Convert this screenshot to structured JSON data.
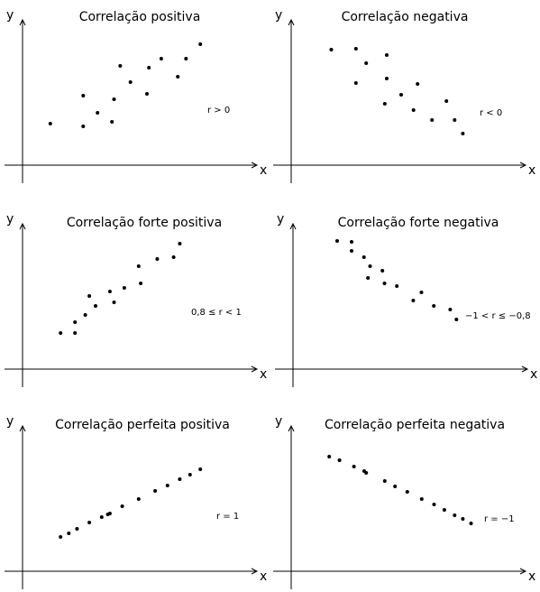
{
  "chart_data": [
    {
      "type": "scatter",
      "title": "Correlação positiva",
      "xlabel": "x",
      "ylabel": "y",
      "annotation": "r > 0",
      "grid": false,
      "points": [
        [
          1.0,
          3.8
        ],
        [
          2.6,
          3.5
        ],
        [
          2.6,
          6.9
        ],
        [
          3.3,
          5.0
        ],
        [
          4.0,
          4.0
        ],
        [
          4.1,
          6.5
        ],
        [
          4.4,
          10.2
        ],
        [
          4.9,
          8.4
        ],
        [
          5.7,
          7.1
        ],
        [
          5.8,
          10.0
        ],
        [
          6.4,
          11.0
        ],
        [
          7.2,
          9.0
        ],
        [
          7.6,
          11.0
        ],
        [
          8.3,
          12.6
        ]
      ]
    },
    {
      "type": "scatter",
      "title": "Correlação negativa",
      "xlabel": "x",
      "ylabel": "y",
      "annotation": "r < 0",
      "grid": false,
      "points": [
        [
          1.6,
          12.0
        ],
        [
          2.8,
          12.1
        ],
        [
          2.8,
          8.3
        ],
        [
          3.3,
          10.5
        ],
        [
          4.2,
          6.0
        ],
        [
          4.3,
          11.4
        ],
        [
          4.3,
          8.8
        ],
        [
          5.0,
          7.0
        ],
        [
          5.6,
          5.3
        ],
        [
          5.8,
          8.2
        ],
        [
          6.5,
          4.2
        ],
        [
          7.2,
          6.3
        ],
        [
          7.6,
          4.2
        ],
        [
          8.0,
          2.7
        ]
      ]
    },
    {
      "type": "scatter",
      "title": "Correlação forte positiva",
      "xlabel": "x",
      "ylabel": "y",
      "annotation": "0,8 ≤ r < 1",
      "grid": false,
      "points": [
        [
          1.5,
          3.2
        ],
        [
          2.2,
          3.2
        ],
        [
          2.2,
          4.4
        ],
        [
          2.7,
          5.2
        ],
        [
          2.9,
          7.3
        ],
        [
          3.2,
          6.2
        ],
        [
          3.9,
          7.8
        ],
        [
          4.1,
          6.6
        ],
        [
          4.6,
          8.2
        ],
        [
          5.3,
          10.6
        ],
        [
          5.4,
          8.7
        ],
        [
          6.2,
          11.4
        ],
        [
          7.0,
          11.6
        ],
        [
          7.3,
          13.1
        ]
      ]
    },
    {
      "type": "scatter",
      "title": "Correlação forte negativa",
      "xlabel": "x",
      "ylabel": "y",
      "annotation": "−1 < r ≤ −0,8",
      "grid": false,
      "points": [
        [
          1.8,
          13.4
        ],
        [
          2.5,
          13.3
        ],
        [
          2.5,
          12.3
        ],
        [
          3.1,
          11.6
        ],
        [
          3.4,
          10.6
        ],
        [
          3.3,
          9.3
        ],
        [
          4.0,
          10.1
        ],
        [
          4.1,
          8.7
        ],
        [
          4.7,
          8.4
        ],
        [
          5.5,
          6.8
        ],
        [
          5.9,
          7.7
        ],
        [
          6.5,
          6.2
        ],
        [
          7.3,
          5.8
        ],
        [
          7.6,
          4.7
        ]
      ]
    },
    {
      "type": "scatter",
      "title": "Correlação perfeita positiva",
      "xlabel": "x",
      "ylabel": "y",
      "annotation": "r = 1",
      "grid": false,
      "points": [
        [
          1.5,
          3.0
        ],
        [
          1.9,
          3.4
        ],
        [
          2.3,
          3.9
        ],
        [
          2.9,
          4.6
        ],
        [
          3.5,
          5.2
        ],
        [
          3.8,
          5.5
        ],
        [
          4.5,
          6.4
        ],
        [
          5.3,
          7.2
        ],
        [
          6.1,
          8.1
        ],
        [
          6.7,
          8.7
        ],
        [
          7.3,
          9.4
        ],
        [
          7.8,
          9.9
        ],
        [
          8.3,
          10.5
        ],
        [
          3.9,
          5.6
        ]
      ]
    },
    {
      "type": "scatter",
      "title": "Correlação perfeita negativa",
      "xlabel": "x",
      "ylabel": "y",
      "annotation": "r = −1",
      "grid": false,
      "points": [
        [
          1.5,
          11.9
        ],
        [
          2.0,
          11.5
        ],
        [
          2.7,
          10.8
        ],
        [
          3.2,
          10.3
        ],
        [
          4.2,
          9.2
        ],
        [
          4.7,
          8.6
        ],
        [
          5.3,
          8.0
        ],
        [
          6.0,
          7.2
        ],
        [
          6.6,
          6.6
        ],
        [
          7.1,
          6.0
        ],
        [
          7.6,
          5.4
        ],
        [
          8.0,
          5.0
        ],
        [
          3.3,
          10.1
        ],
        [
          8.4,
          4.5
        ]
      ]
    }
  ]
}
